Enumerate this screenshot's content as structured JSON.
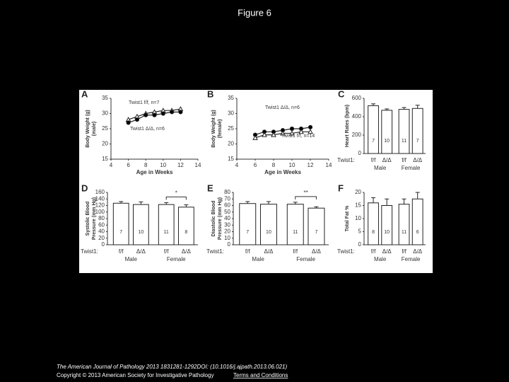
{
  "title": "Figure 6",
  "footer": {
    "citation": "The American Journal of Pathology 2013 1831281-1292DOI: (10.1016/j.ajpath.2013.06.021)",
    "copyright": "Copyright © 2013 American Society for Investigative Pathology",
    "link": "Terms and Conditions"
  },
  "chart_data": [
    {
      "type": "line",
      "panel": "A",
      "ylabel": [
        "Body Weight (g)",
        "(male)"
      ],
      "xlabel": "Age in Weeks",
      "xlim": [
        4,
        14
      ],
      "xticks": [
        4,
        6,
        8,
        10,
        12,
        14
      ],
      "ylim": [
        15,
        35
      ],
      "yticks": [
        15,
        20,
        25,
        30,
        35
      ],
      "x": [
        6,
        7,
        8,
        9,
        10,
        11,
        12
      ],
      "series": [
        {
          "name": "Twist1 f/f, n=7",
          "marker": "triangle",
          "fill": "#ffffff",
          "values": [
            28,
            29,
            30,
            30.5,
            31,
            31,
            31.5
          ]
        },
        {
          "name": "Twist1 Δ/Δ, n=6",
          "marker": "circle",
          "fill": "#000000",
          "values": [
            27,
            28,
            29.5,
            29.5,
            30,
            30.5,
            30.5
          ]
        }
      ]
    },
    {
      "type": "line",
      "panel": "B",
      "ylabel": [
        "Body Weight (g)",
        "(female)"
      ],
      "xlabel": "Age in Weeks",
      "xlim": [
        4,
        14
      ],
      "xticks": [
        4,
        6,
        8,
        10,
        12,
        14
      ],
      "ylim": [
        15,
        35
      ],
      "yticks": [
        15,
        20,
        25,
        30,
        35
      ],
      "x": [
        6,
        7,
        8,
        9,
        10,
        11,
        12
      ],
      "series": [
        {
          "name": "Twist1 Δ/Δ, n=6",
          "marker": "circle",
          "fill": "#000000",
          "values": [
            23,
            24,
            24,
            24.5,
            25,
            25,
            25.5
          ]
        },
        {
          "name": "Twist1 f/f, n=14",
          "marker": "triangle",
          "fill": "#ffffff",
          "values": [
            22,
            23,
            23,
            23.5,
            23.5,
            24,
            24
          ]
        }
      ]
    },
    {
      "type": "bar",
      "panel": "C",
      "ylabel": [
        "Heart Rates (bpm)"
      ],
      "ylim": [
        0,
        600
      ],
      "yticks": [
        0,
        200,
        400,
        600
      ],
      "row_label": "Twist1:",
      "categories": [
        "f/f",
        "Δ/Δ",
        "f/f",
        "Δ/Δ"
      ],
      "groups": [
        "Male",
        "Female"
      ],
      "values": [
        520,
        470,
        480,
        490
      ],
      "errors": [
        20,
        15,
        20,
        35
      ],
      "n_labels": [
        "7",
        "10",
        "11",
        "7"
      ]
    },
    {
      "type": "bar",
      "panel": "D",
      "ylabel": [
        "Systolic Blood",
        "Pressure (mm Hg)"
      ],
      "ylim": [
        0,
        160
      ],
      "yticks": [
        0,
        20,
        40,
        60,
        80,
        100,
        120,
        140,
        160
      ],
      "row_label": "Twist1:",
      "categories": [
        "f/f",
        "Δ/Δ",
        "f/f",
        "Δ/Δ"
      ],
      "groups": [
        "Male",
        "Female"
      ],
      "values": [
        127,
        123,
        123,
        115
      ],
      "errors": [
        5,
        8,
        6,
        7
      ],
      "n_labels": [
        "7",
        "10",
        "11",
        "8"
      ],
      "significance": "*"
    },
    {
      "type": "bar",
      "panel": "E",
      "ylabel": [
        "Diastolic Blood",
        "Pressure (mm Hg)"
      ],
      "ylim": [
        0,
        80
      ],
      "yticks": [
        0,
        10,
        20,
        30,
        40,
        50,
        60,
        70,
        80
      ],
      "row_label": "Twist1:",
      "categories": [
        "f/f",
        "Δ/Δ",
        "f/f",
        "Δ/Δ"
      ],
      "groups": [
        "Male",
        "Female"
      ],
      "values": [
        63,
        62,
        62,
        56
      ],
      "errors": [
        3,
        4,
        3,
        2
      ],
      "n_labels": [
        "7",
        "10",
        "11",
        "7"
      ],
      "significance": "**"
    },
    {
      "type": "bar",
      "panel": "F",
      "ylabel": [
        "Total Fat %"
      ],
      "ylim": [
        0,
        20
      ],
      "yticks": [
        0,
        5,
        10,
        15,
        20
      ],
      "row_label": "Twist1:",
      "categories": [
        "f/f",
        "Δ/Δ",
        "f/f",
        "Δ/Δ"
      ],
      "groups": [
        "Male",
        "Female"
      ],
      "values": [
        16,
        15,
        15.5,
        17.5
      ],
      "errors": [
        2,
        2.5,
        2,
        2.5
      ],
      "n_labels": [
        "8",
        "10",
        "11",
        "6"
      ]
    }
  ]
}
